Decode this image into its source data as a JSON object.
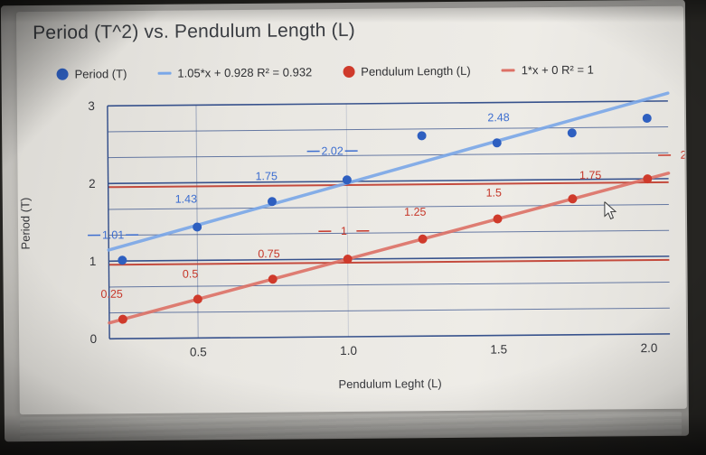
{
  "title": "Period (T^2) vs. Pendulum Length (L)",
  "legend": {
    "items": [
      {
        "label": "Period (T)",
        "marker": "circle",
        "color": "#2e5fc0"
      },
      {
        "label": "1.05*x + 0.928 R² = 0.932",
        "marker": "line",
        "color": "#7aa7e8"
      },
      {
        "label": "Pendulum Length (L)",
        "marker": "circle",
        "color": "#cf3a2b"
      },
      {
        "label": "1*x + 0 R² = 1",
        "marker": "line",
        "color": "#dd7166"
      }
    ]
  },
  "axes": {
    "x_title": "Pendulum Leght (L)",
    "y_title": "Period (T)"
  },
  "chart_data": {
    "type": "scatter",
    "title": "Period (T^2) vs. Pendulum Length (L)",
    "xlabel": "Pendulum Leght (L)",
    "ylabel": "Period (T)",
    "xlim": [
      0.205,
      2.07
    ],
    "ylim": [
      0,
      3
    ],
    "x_tick_values": [
      0.5,
      1.0,
      1.5,
      2.0
    ],
    "x_tick_labels": [
      "0.5",
      "1.0",
      "1.5",
      "2.0"
    ],
    "y_tick_values": [
      0,
      1,
      2,
      3
    ],
    "y_tick_labels": [
      "0",
      "1",
      "2",
      "3"
    ],
    "grid": {
      "color": "#2e4a88",
      "h_divisions_per_unit": 3,
      "v_gridlines": [
        0.5,
        1.0
      ],
      "red_guide_values": [
        1,
        2
      ],
      "red_guide_color": "#c03a2c"
    },
    "series": [
      {
        "name": "Period (T)",
        "color": "#2e5fc0",
        "label_color": "#3d6ed0",
        "trendline": {
          "equation": "1.05*x + 0.928",
          "r_squared": 0.932,
          "slope": 1.05,
          "intercept": 0.928,
          "color": "#7aa7e8"
        },
        "points": [
          {
            "x": 0.25,
            "y": 1.01,
            "label": "1.01",
            "dx": -10,
            "dy": -24,
            "dash": true
          },
          {
            "x": 0.5,
            "y": 1.43,
            "label": "1.43",
            "dx": -12,
            "dy": -27
          },
          {
            "x": 0.75,
            "y": 1.75,
            "label": "1.75",
            "dx": -6,
            "dy": -24
          },
          {
            "x": 1.0,
            "y": 2.02,
            "label": "2.02",
            "dx": -16,
            "dy": -28,
            "dash": true
          },
          {
            "x": 1.25,
            "y": 2.58,
            "label": ""
          },
          {
            "x": 1.5,
            "y": 2.48,
            "label": "2.48",
            "dx": 2,
            "dy": -24
          },
          {
            "x": 1.75,
            "y": 2.6,
            "label": ""
          },
          {
            "x": 2.0,
            "y": 2.78,
            "label": ""
          }
        ]
      },
      {
        "name": "Pendulum Length (L)",
        "color": "#cf3a2b",
        "label_color": "#c6382b",
        "trendline": {
          "equation": "1*x + 0",
          "r_squared": 1,
          "slope": 1,
          "intercept": 0,
          "color": "#dd7166"
        },
        "points": [
          {
            "x": 0.25,
            "y": 0.25,
            "label": "0.25",
            "dx": -12,
            "dy": -24
          },
          {
            "x": 0.5,
            "y": 0.5,
            "label": "0.5",
            "dx": -8,
            "dy": -24
          },
          {
            "x": 0.75,
            "y": 0.75,
            "label": "0.75",
            "dx": -4,
            "dy": -24
          },
          {
            "x": 1.0,
            "y": 1.0,
            "label": "1",
            "dx": -4,
            "dy": -27,
            "dash": true
          },
          {
            "x": 1.25,
            "y": 1.25,
            "label": "1.25",
            "dx": -8,
            "dy": -26
          },
          {
            "x": 1.5,
            "y": 1.5,
            "label": "1.5",
            "dx": -4,
            "dy": -25
          },
          {
            "x": 1.75,
            "y": 1.75,
            "label": "1.75",
            "dx": 20,
            "dy": -22
          },
          {
            "x": 2.0,
            "y": 2.0,
            "label": "2",
            "dx": 40,
            "dy": -22,
            "dash": true
          }
        ]
      }
    ]
  }
}
